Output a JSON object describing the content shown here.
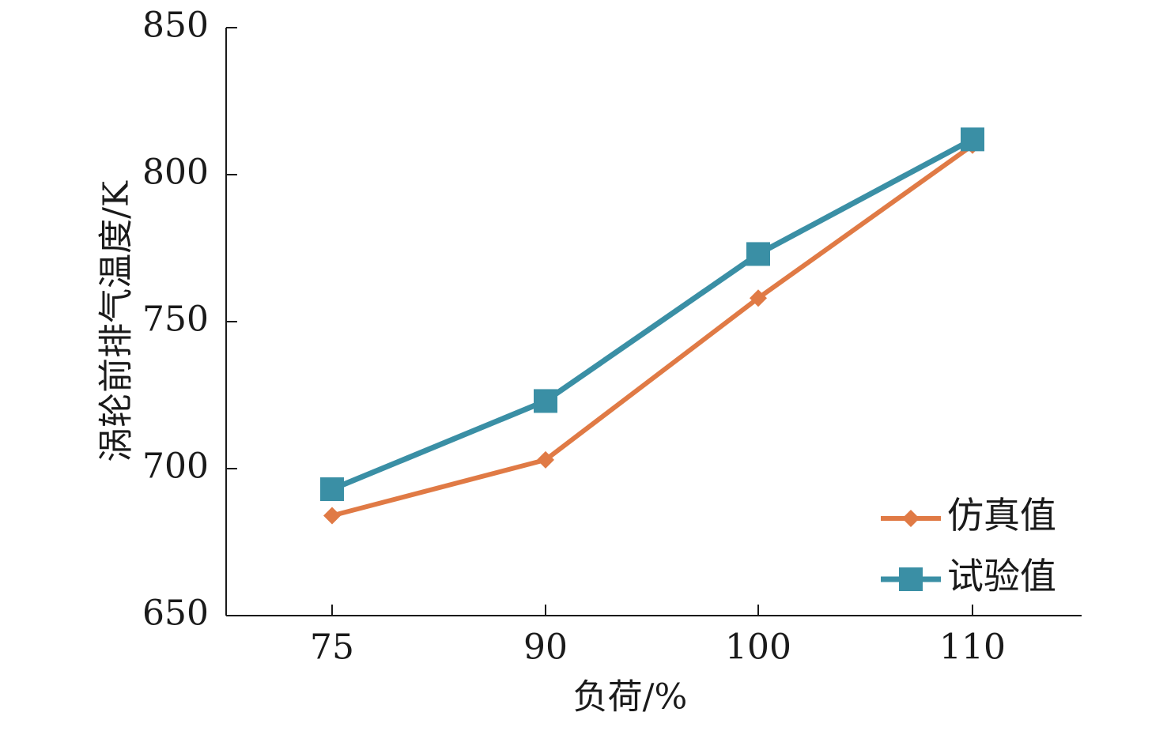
{
  "chart_data": {
    "type": "line",
    "categories": [
      "75",
      "90",
      "100",
      "110"
    ],
    "xlabel": "负荷/%",
    "ylabel": "涡轮前排气温度/K",
    "ylim": [
      650,
      850
    ],
    "yticks": [
      "650",
      "700",
      "750",
      "800",
      "850"
    ],
    "grid": false,
    "legend_position": "bottom-right",
    "series": [
      {
        "name": "仿真值",
        "values": [
          684,
          703,
          758,
          810
        ],
        "color": "#e07a45",
        "marker": "diamond"
      },
      {
        "name": "试验值",
        "values": [
          693,
          723,
          773,
          812
        ],
        "color": "#3a8fa5",
        "marker": "square"
      }
    ]
  }
}
